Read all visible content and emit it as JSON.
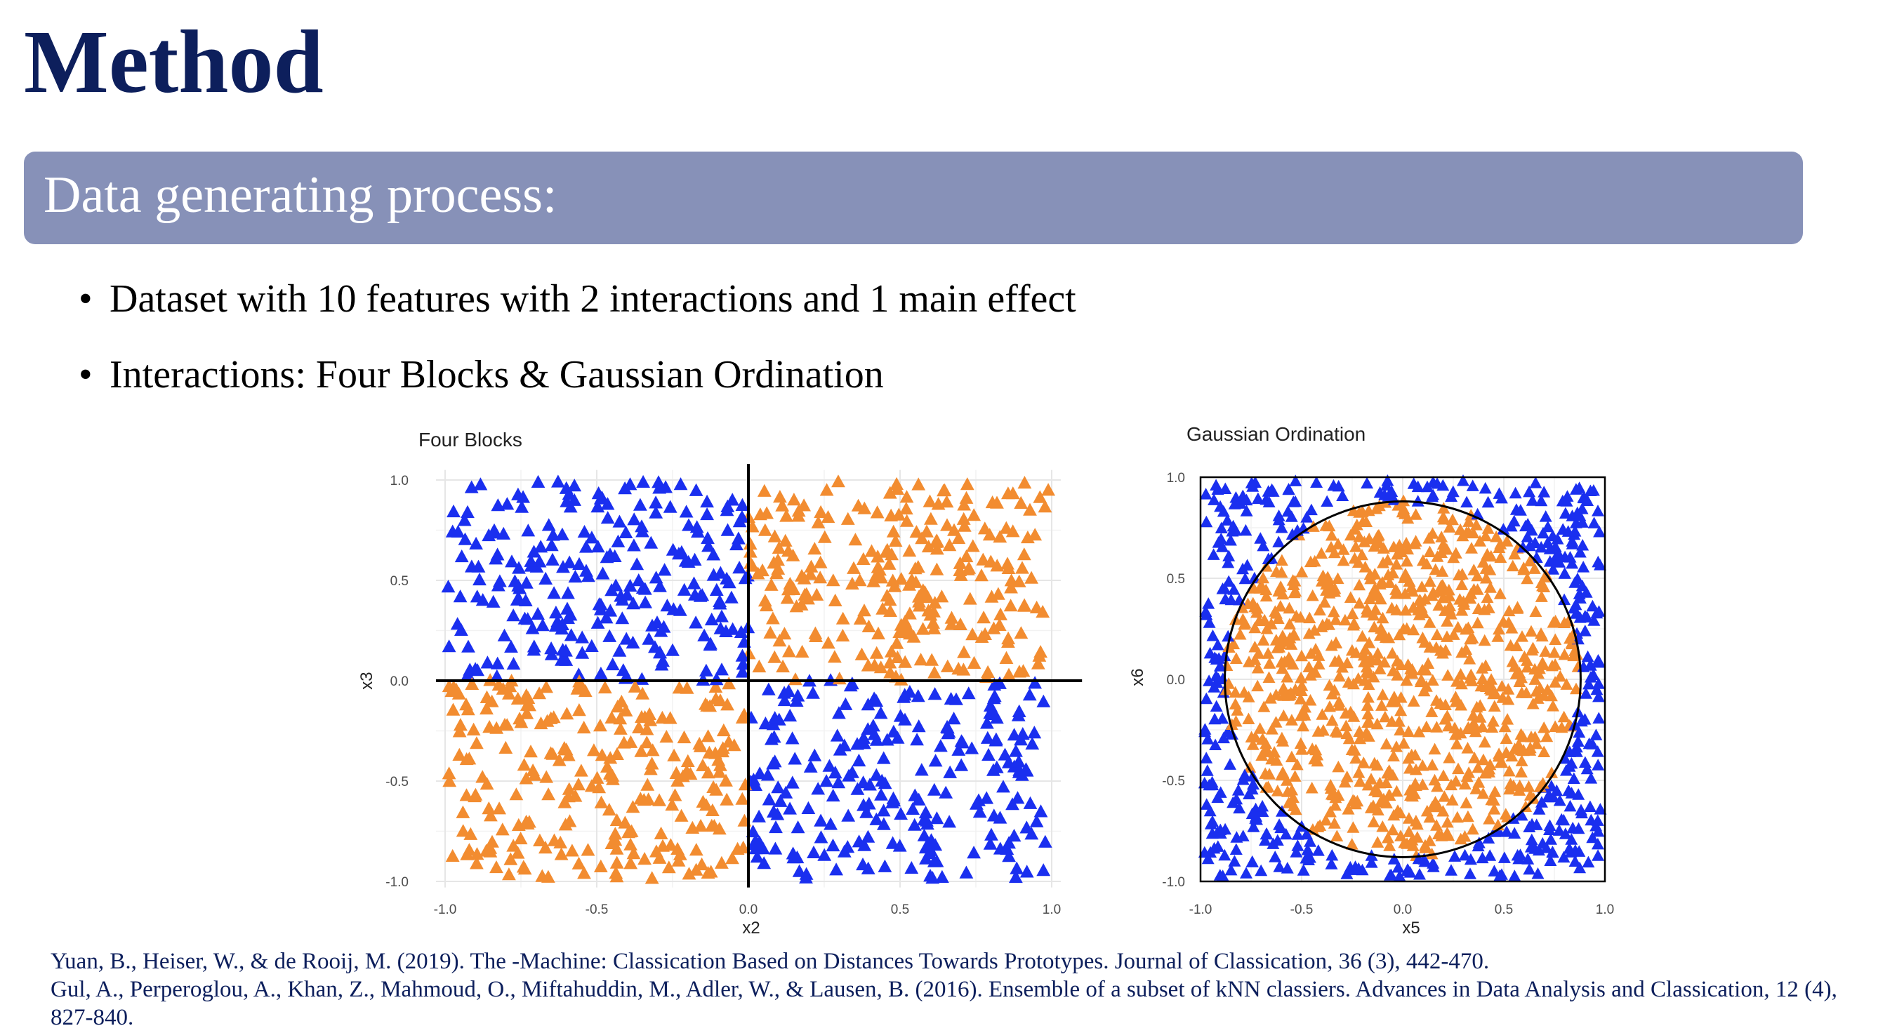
{
  "slide": {
    "title": "Method",
    "banner": "Data generating process:",
    "bullets": [
      "Dataset with 10 features with 2 interactions and 1 main effect",
      "Interactions: Four Blocks & Gaussian Ordination"
    ],
    "references": [
      "Yuan, B., Heiser, W., & de Rooij, M. (2019). The -Machine: Classication Based on Distances Towards Prototypes. Journal of Classication, 36 (3), 442-470.",
      "Gul, A., Perperoglou, A., Khan, Z., Mahmoud, O., Miftahuddin, M., Adler, W., & Lausen, B. (2016). Ensemble of a subset of kNN classiers. Advances in Data Analysis and Classication, 12 (4), 827-840."
    ]
  },
  "colors": {
    "class_blue": "#1a2fef",
    "class_orange": "#f28c30",
    "title": "#0d1f5c",
    "banner": "#8791b8"
  },
  "chart_data": [
    {
      "type": "scatter",
      "title": "Four Blocks",
      "xlabel": "x2",
      "ylabel": "x3",
      "xlim": [
        -1.0,
        1.0
      ],
      "ylim": [
        -1.0,
        1.0
      ],
      "xticks": [
        "-1.0",
        "-0.5",
        "0.0",
        "0.5",
        "1.0"
      ],
      "yticks": [
        "-1.0",
        "-0.5",
        "0.0",
        "0.5",
        "1.0"
      ],
      "grid": true,
      "marker": "triangle",
      "reference_lines": [
        "x = 0",
        "y = 0"
      ],
      "series": [
        {
          "color": "blue",
          "regions": [
            "x < 0, y > 0",
            "x > 0, y < 0"
          ],
          "approx_count": 500
        },
        {
          "color": "orange",
          "regions": [
            "x > 0, y > 0",
            "x < 0, y < 0"
          ],
          "approx_count": 500
        }
      ]
    },
    {
      "type": "scatter",
      "title": "Gaussian Ordination",
      "xlabel": "x5",
      "ylabel": "x6",
      "xlim": [
        -1.0,
        1.0
      ],
      "ylim": [
        -1.0,
        1.0
      ],
      "xticks": [
        "-1.0",
        "-0.5",
        "0.0",
        "0.5",
        "1.0"
      ],
      "yticks": [
        "-1.0",
        "-0.5",
        "0.0",
        "0.5",
        "1.0"
      ],
      "grid": true,
      "marker": "triangle",
      "boundary": {
        "shape": "circle",
        "center": [
          0.0,
          0.0
        ],
        "radius": 0.88
      },
      "frame": "square [-1, 1]",
      "series": [
        {
          "color": "orange",
          "region": "inside circle",
          "approx_count": 750
        },
        {
          "color": "blue",
          "region": "outside circle",
          "approx_count": 450
        }
      ]
    }
  ]
}
